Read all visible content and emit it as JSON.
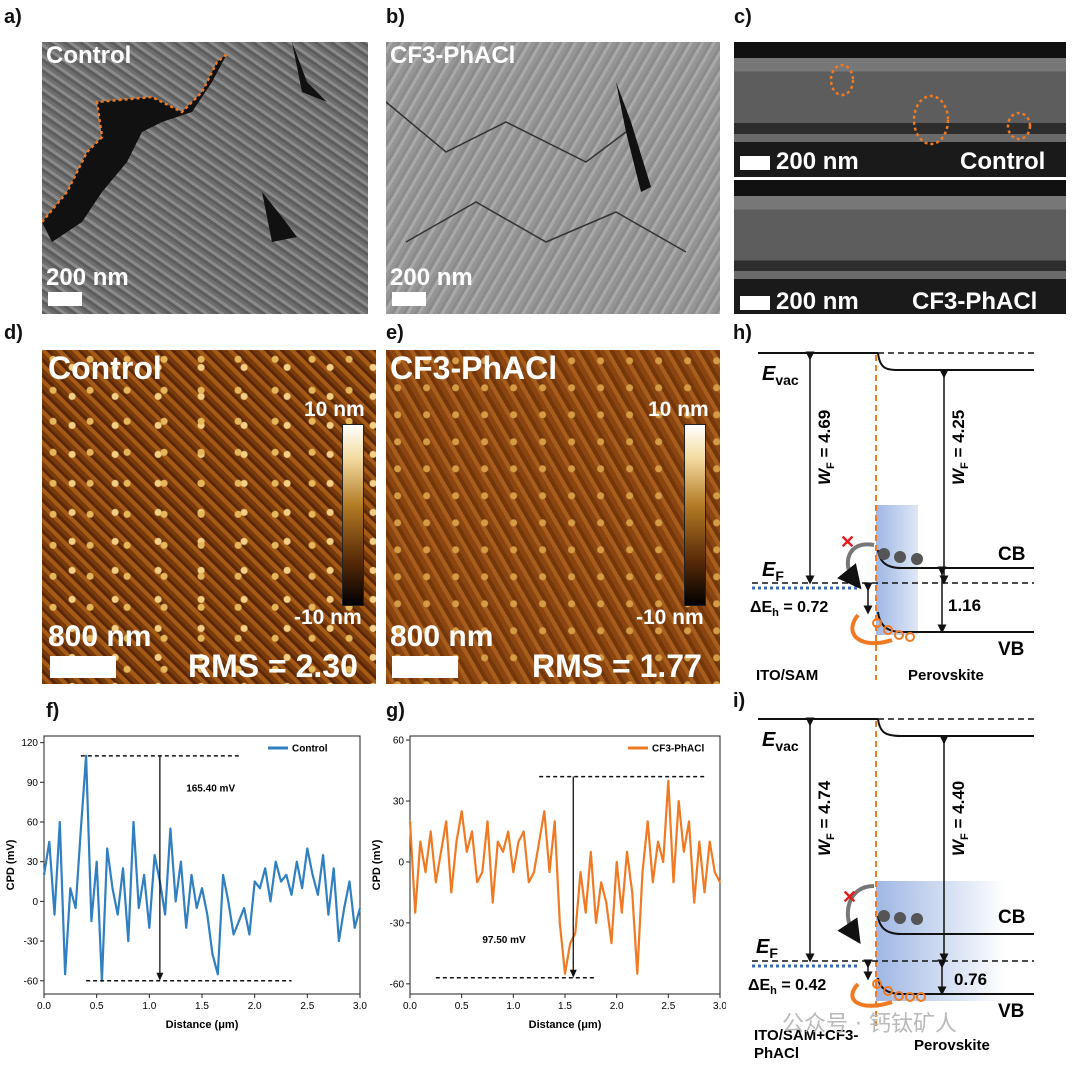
{
  "panels": {
    "a": {
      "letter": "a)",
      "sample": "Control",
      "scale": "200 nm"
    },
    "b": {
      "letter": "b)",
      "sample": "CF3-PhACl",
      "scale": "200 nm"
    },
    "c": {
      "letter": "c)",
      "top_scale": "200 nm",
      "top_sample": "Control",
      "bottom_scale": "200 nm",
      "bottom_sample": "CF3-PhACl"
    },
    "d": {
      "letter": "d)",
      "sample": "Control",
      "cbar_top": "10 nm",
      "cbar_bottom": "-10 nm",
      "scale": "800 nm",
      "rms": "RMS = 2.30"
    },
    "e": {
      "letter": "e)",
      "sample": "CF3-PhACl",
      "cbar_top": "10 nm",
      "cbar_bottom": "-10 nm",
      "scale": "800 nm",
      "rms": "RMS = 1.77"
    },
    "f": {
      "letter": "f)"
    },
    "g": {
      "letter": "g)"
    },
    "h": {
      "letter": "h)",
      "evac": "E",
      "evac_sub": "vac",
      "wf_left": "W",
      "wf_left_sub": "F",
      "wf_left_val": " = 4.69",
      "wf_right": "W",
      "wf_right_sub": "F",
      "wf_right_val": " = 4.25",
      "ef": "E",
      "ef_sub": "F",
      "cb": "CB",
      "vb": "VB",
      "dEh": "ΔE",
      "dEh_sub": "h",
      "dEh_val": " = 0.72",
      "gap": "1.16",
      "left_label": "ITO/SAM",
      "right_label": "Perovskite"
    },
    "i": {
      "letter": "i)",
      "evac": "E",
      "evac_sub": "vac",
      "wf_left": "W",
      "wf_left_sub": "F",
      "wf_left_val": " = 4.74",
      "wf_right": "W",
      "wf_right_sub": "F",
      "wf_right_val": " = 4.40",
      "ef": "E",
      "ef_sub": "F",
      "cb": "CB",
      "vb": "VB",
      "dEh": "ΔE",
      "dEh_sub": "h",
      "dEh_val": " = 0.42",
      "gap": "0.76",
      "left_label_1": "ITO/SAM+CF3-",
      "left_label_2": "PhACl",
      "right_label": "Perovskite"
    }
  },
  "watermark": "公众号 · 钙钛矿人",
  "chart_data": [
    {
      "type": "line",
      "panel": "f",
      "xlabel": "Distance (μm)",
      "ylabel": "CPD (mV)",
      "xlim": [
        0,
        3.0
      ],
      "ylim": [
        -70,
        125
      ],
      "xticks": [
        "0.0",
        "0.5",
        "1.0",
        "1.5",
        "2.0",
        "2.5",
        "3.0"
      ],
      "yticks": [
        "120",
        "90",
        "60",
        "30",
        "0",
        "-30",
        "-60"
      ],
      "annotation": "165.40 mV",
      "ref_high": 110,
      "ref_low": -60,
      "arrow_x": 1.1,
      "color": "#2f7fc1",
      "series": [
        {
          "name": "Control",
          "x": [
            0.0,
            0.05,
            0.1,
            0.15,
            0.2,
            0.25,
            0.3,
            0.35,
            0.4,
            0.45,
            0.5,
            0.55,
            0.6,
            0.65,
            0.7,
            0.75,
            0.8,
            0.85,
            0.9,
            0.95,
            1.0,
            1.05,
            1.1,
            1.15,
            1.2,
            1.25,
            1.3,
            1.35,
            1.4,
            1.45,
            1.5,
            1.55,
            1.6,
            1.65,
            1.7,
            1.75,
            1.8,
            1.85,
            1.9,
            1.95,
            2.0,
            2.05,
            2.1,
            2.15,
            2.2,
            2.25,
            2.3,
            2.35,
            2.4,
            2.45,
            2.5,
            2.55,
            2.6,
            2.65,
            2.7,
            2.75,
            2.8,
            2.85,
            2.9,
            2.95,
            3.0
          ],
          "values": [
            20,
            45,
            -10,
            60,
            -55,
            10,
            -5,
            55,
            110,
            -15,
            30,
            -60,
            40,
            10,
            -10,
            25,
            -30,
            60,
            -5,
            20,
            -20,
            35,
            15,
            -10,
            55,
            0,
            30,
            -20,
            20,
            -5,
            10,
            -10,
            -40,
            -55,
            20,
            0,
            -25,
            -15,
            -5,
            -25,
            15,
            10,
            25,
            0,
            30,
            15,
            20,
            5,
            30,
            10,
            40,
            20,
            5,
            35,
            -10,
            25,
            -30,
            -5,
            15,
            -20,
            -5
          ]
        }
      ]
    },
    {
      "type": "line",
      "panel": "g",
      "xlabel": "Distance (μm)",
      "ylabel": "CPD (mV)",
      "xlim": [
        0,
        3.0
      ],
      "ylim": [
        -65,
        62
      ],
      "xticks": [
        "0.0",
        "0.5",
        "1.0",
        "1.5",
        "2.0",
        "2.5",
        "3.0"
      ],
      "yticks": [
        "60",
        "30",
        "0",
        "-30",
        "-60"
      ],
      "annotation": "97.50 mV",
      "ref_high": 42,
      "ref_low": -57,
      "arrow_x": 1.58,
      "color": "#f07a23",
      "series": [
        {
          "name": "CF3-PhACl",
          "x": [
            0.0,
            0.05,
            0.1,
            0.15,
            0.2,
            0.25,
            0.3,
            0.35,
            0.4,
            0.45,
            0.5,
            0.55,
            0.6,
            0.65,
            0.7,
            0.75,
            0.8,
            0.85,
            0.9,
            0.95,
            1.0,
            1.05,
            1.1,
            1.15,
            1.2,
            1.25,
            1.3,
            1.35,
            1.4,
            1.45,
            1.5,
            1.55,
            1.6,
            1.65,
            1.7,
            1.75,
            1.8,
            1.85,
            1.9,
            1.95,
            2.0,
            2.05,
            2.1,
            2.15,
            2.2,
            2.25,
            2.3,
            2.35,
            2.4,
            2.45,
            2.5,
            2.55,
            2.6,
            2.65,
            2.7,
            2.75,
            2.8,
            2.85,
            2.9,
            2.95,
            3.0
          ],
          "values": [
            20,
            -25,
            10,
            -5,
            15,
            -10,
            5,
            20,
            -15,
            10,
            25,
            5,
            15,
            -10,
            -5,
            20,
            -20,
            10,
            5,
            15,
            -5,
            10,
            15,
            -10,
            -5,
            10,
            25,
            -5,
            20,
            -30,
            -55,
            -40,
            -35,
            -5,
            -25,
            5,
            -30,
            -10,
            -20,
            -40,
            0,
            -25,
            5,
            -15,
            -55,
            -5,
            20,
            -10,
            10,
            0,
            40,
            -10,
            30,
            5,
            20,
            -20,
            10,
            -15,
            10,
            -5,
            -10
          ]
        }
      ]
    }
  ]
}
